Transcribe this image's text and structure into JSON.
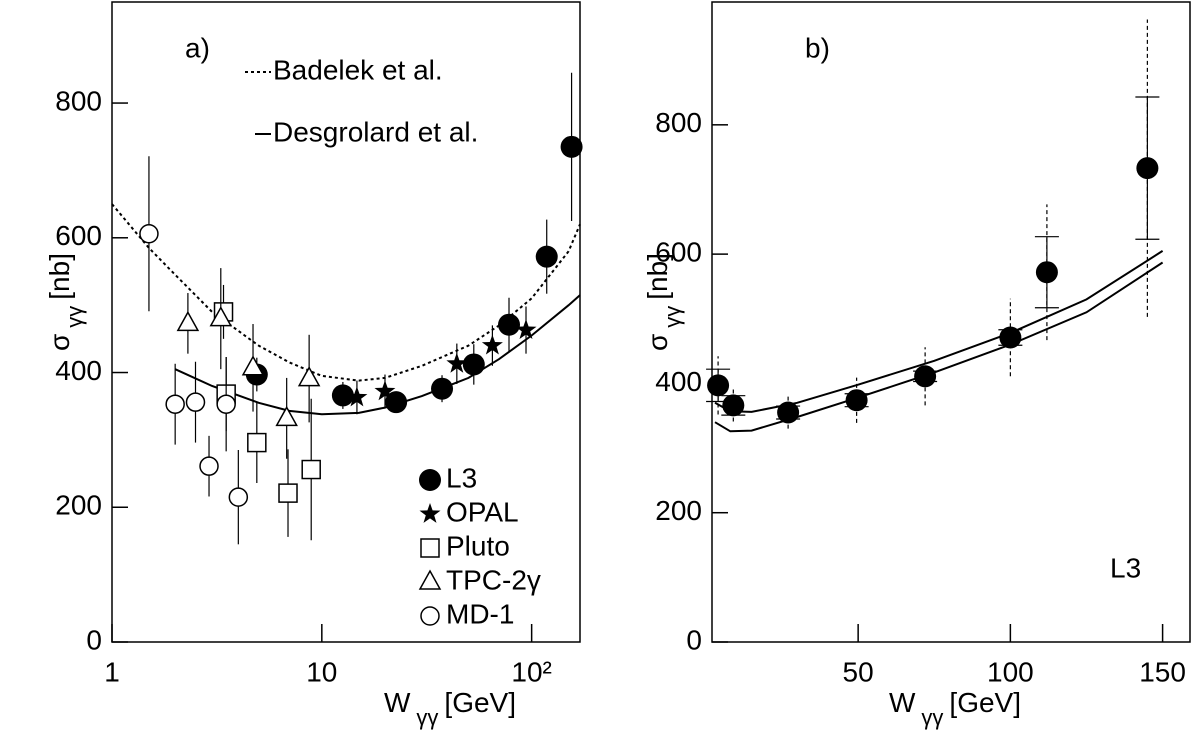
{
  "chart_data": [
    {
      "type": "scatter",
      "xscale": "log",
      "xlim": [
        1,
        170
      ],
      "ylim": [
        0,
        950
      ],
      "xticks": [
        1,
        10,
        {
          "value": 100,
          "label": "10²"
        }
      ],
      "yticks": [
        0,
        200,
        400,
        600,
        800
      ],
      "xlabel": [
        "W",
        "γγ",
        "[GeV]"
      ],
      "ylabel": [
        "σ",
        "γγ",
        "[nb]"
      ],
      "annotations": [
        "a)"
      ],
      "series": [
        {
          "name": "Badelek et al.",
          "mode": "line",
          "style": "dotted",
          "color": "#000000",
          "x": [
            1,
            1.5,
            2,
            3,
            5,
            7,
            10,
            15,
            20,
            30,
            50,
            70,
            100,
            150,
            170
          ],
          "values": [
            650,
            585,
            545,
            490,
            440,
            415,
            395,
            388,
            392,
            410,
            440,
            470,
            510,
            580,
            620
          ]
        },
        {
          "name": "Desgrolard et al.",
          "mode": "line",
          "style": "solid",
          "color": "#000000",
          "x": [
            2,
            3,
            5,
            7,
            10,
            15,
            20,
            30,
            50,
            70,
            100,
            150,
            170
          ],
          "values": [
            405,
            380,
            355,
            343,
            338,
            340,
            348,
            365,
            392,
            420,
            455,
            500,
            515
          ]
        },
        {
          "name": "L3",
          "mode": "markers",
          "marker": "circle-filled",
          "color": "#000000",
          "x": [
            4.9,
            12.6,
            22.6,
            37.4,
            53,
            78,
            118,
            155
          ],
          "values": [
            397,
            366,
            356,
            376,
            412,
            471,
            572,
            735
          ],
          "errors": [
            25,
            20,
            15,
            20,
            30,
            40,
            55,
            110
          ]
        },
        {
          "name": "OPAL",
          "mode": "markers",
          "marker": "star",
          "color": "#000000",
          "x": [
            14.7,
            20,
            44,
            65,
            94
          ],
          "values": [
            363,
            372,
            413,
            440,
            463
          ],
          "errors": [
            25,
            25,
            30,
            30,
            35
          ]
        },
        {
          "name": "Pluto",
          "mode": "markers",
          "marker": "square",
          "color": "#000000",
          "x": [
            3.4,
            3.5,
            4.9,
            6.9,
            8.9
          ],
          "values": [
            490,
            368,
            296,
            221,
            256
          ],
          "errors": [
            40,
            55,
            60,
            65,
            105
          ]
        },
        {
          "name": "TPC-2γ",
          "mode": "markers",
          "marker": "triangle",
          "color": "#000000",
          "x": [
            2.3,
            3.3,
            4.7,
            6.8,
            8.7
          ],
          "values": [
            473,
            480,
            407,
            332,
            391
          ],
          "errors": [
            45,
            75,
            65,
            60,
            65
          ]
        },
        {
          "name": "MD-1",
          "mode": "markers",
          "marker": "circle-open",
          "color": "#000000",
          "x": [
            1.5,
            2,
            2.5,
            2.9,
            3.5,
            4
          ],
          "values": [
            606,
            353,
            356,
            261,
            353,
            215
          ],
          "errors": [
            115,
            60,
            60,
            45,
            70,
            70
          ]
        }
      ]
    },
    {
      "type": "scatter",
      "xlim": [
        2,
        159
      ],
      "ylim": [
        0,
        990
      ],
      "xticks": [
        50,
        100,
        150
      ],
      "yticks": [
        0,
        200,
        400,
        600,
        800
      ],
      "xlabel": [
        "W",
        "γγ",
        "[GeV]"
      ],
      "ylabel": [
        "σ",
        "γγ",
        "[nb]"
      ],
      "annotations": [
        "b)",
        "L3"
      ],
      "series": [
        {
          "mode": "line",
          "style": "solid",
          "color": "#000000",
          "x": [
            3,
            8,
            15,
            30,
            50,
            75,
            100,
            125,
            150
          ],
          "values": [
            370,
            357,
            356,
            370,
            398,
            435,
            478,
            530,
            605
          ]
        },
        {
          "mode": "line",
          "style": "solid",
          "color": "#000000",
          "x": [
            3,
            8,
            15,
            30,
            50,
            75,
            100,
            125,
            150
          ],
          "values": [
            340,
            326,
            327,
            348,
            378,
            417,
            460,
            510,
            587
          ]
        },
        {
          "mode": "markers",
          "marker": "circle-filled",
          "color": "#000000",
          "x": [
            4,
            9,
            27,
            49.5,
            72,
            100,
            112,
            145
          ],
          "values": [
            397,
            366,
            355,
            374,
            411,
            471,
            572,
            733
          ],
          "errors": [
            25,
            15,
            10,
            10,
            8,
            12,
            55,
            110
          ],
          "total_errors": [
            45,
            25,
            25,
            35,
            45,
            60,
            105,
            230
          ]
        }
      ]
    }
  ]
}
